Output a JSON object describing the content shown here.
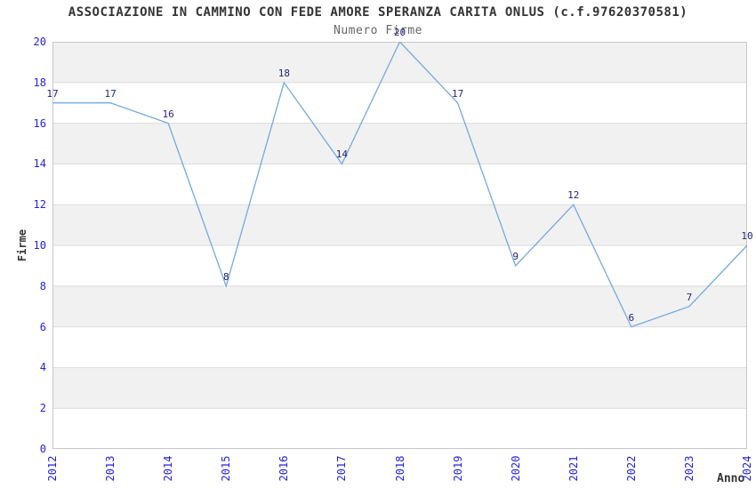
{
  "chart_data": {
    "type": "line",
    "title": "ASSOCIAZIONE IN CAMMINO CON FEDE AMORE SPERANZA CARITA ONLUS (c.f.97620370581)",
    "subtitle": "Numero Firme",
    "xlabel": "Anno",
    "ylabel": "Firme",
    "categories": [
      "2012",
      "2013",
      "2014",
      "2015",
      "2016",
      "2017",
      "2018",
      "2019",
      "2020",
      "2021",
      "2022",
      "2023",
      "2024"
    ],
    "values": [
      17,
      17,
      16,
      8,
      18,
      14,
      20,
      17,
      9,
      12,
      6,
      7,
      10
    ],
    "ylim": [
      0,
      20
    ],
    "ytick_step": 2,
    "yticks": [
      0,
      2,
      4,
      6,
      8,
      10,
      12,
      14,
      16,
      18,
      20
    ],
    "grid": true,
    "legend": "none",
    "point_labels_visible": true,
    "colors": {
      "line": "#74A9DF",
      "point_label": "#232377",
      "tick_label": "#2222DD",
      "band": "#F1F1F1",
      "grid_line": "#DCDCDC",
      "plot_border": "#C8C8C8",
      "title": "#333333",
      "subtitle": "#666666",
      "axis_title": "#333333",
      "background": "#FFFFFF"
    }
  }
}
